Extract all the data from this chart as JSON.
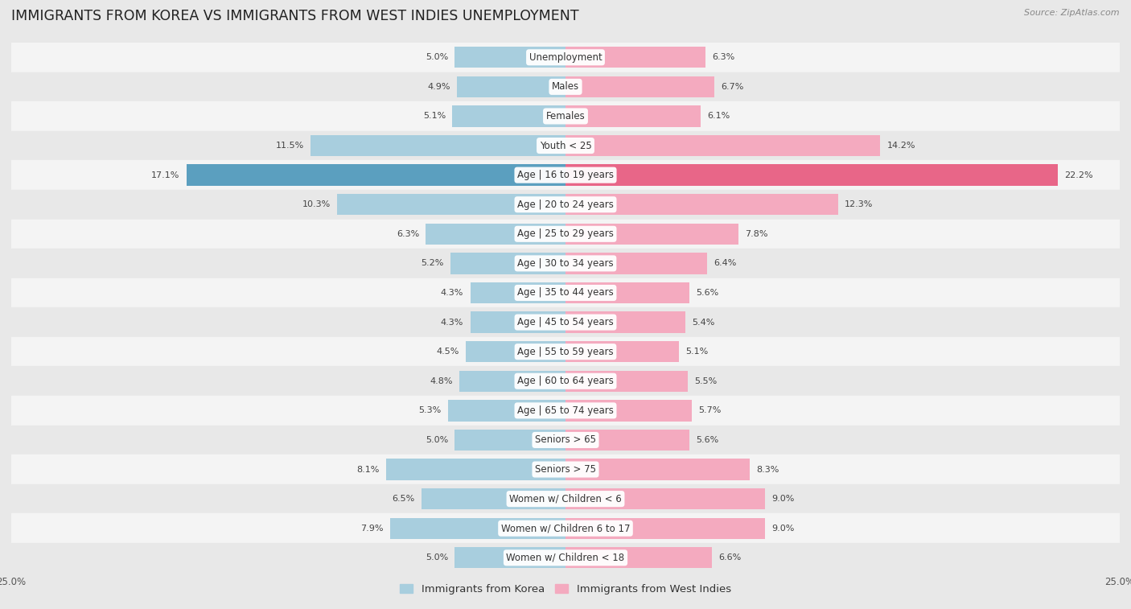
{
  "title": "IMMIGRANTS FROM KOREA VS IMMIGRANTS FROM WEST INDIES UNEMPLOYMENT",
  "source": "Source: ZipAtlas.com",
  "categories": [
    "Unemployment",
    "Males",
    "Females",
    "Youth < 25",
    "Age | 16 to 19 years",
    "Age | 20 to 24 years",
    "Age | 25 to 29 years",
    "Age | 30 to 34 years",
    "Age | 35 to 44 years",
    "Age | 45 to 54 years",
    "Age | 55 to 59 years",
    "Age | 60 to 64 years",
    "Age | 65 to 74 years",
    "Seniors > 65",
    "Seniors > 75",
    "Women w/ Children < 6",
    "Women w/ Children 6 to 17",
    "Women w/ Children < 18"
  ],
  "korea_values": [
    5.0,
    4.9,
    5.1,
    11.5,
    17.1,
    10.3,
    6.3,
    5.2,
    4.3,
    4.3,
    4.5,
    4.8,
    5.3,
    5.0,
    8.1,
    6.5,
    7.9,
    5.0
  ],
  "west_indies_values": [
    6.3,
    6.7,
    6.1,
    14.2,
    22.2,
    12.3,
    7.8,
    6.4,
    5.6,
    5.4,
    5.1,
    5.5,
    5.7,
    5.6,
    8.3,
    9.0,
    9.0,
    6.6
  ],
  "korea_color": "#A8CEDE",
  "west_indies_color": "#F4AABF",
  "korea_highlight_color": "#5B9FBF",
  "west_indies_highlight_color": "#E86688",
  "row_bg_even": "#f4f4f4",
  "row_bg_odd": "#e8e8e8",
  "background_color": "#e8e8e8",
  "xlim": 25.0,
  "bar_height": 0.72,
  "title_fontsize": 12.5,
  "label_fontsize": 8.5,
  "value_fontsize": 8.0,
  "legend_fontsize": 9.5,
  "source_fontsize": 8.0,
  "legend_korea": "Immigrants from Korea",
  "legend_west_indies": "Immigrants from West Indies"
}
